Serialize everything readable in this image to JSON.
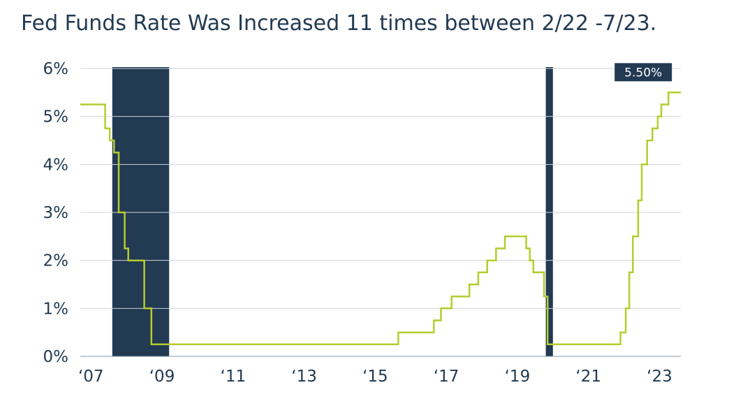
{
  "chart_data": {
    "type": "line",
    "title": "Fed Funds Rate Was Increased 11 times between 2/22 -7/23.",
    "xlabel": "",
    "ylabel": "",
    "xlim": [
      2007.0,
      2023.9
    ],
    "ylim": [
      0,
      6
    ],
    "grid": true,
    "x_tick_labels": [
      {
        "x": 2007.3,
        "label": "‘07"
      },
      {
        "x": 2009.3,
        "label": "‘09"
      },
      {
        "x": 2011.3,
        "label": "‘11"
      },
      {
        "x": 2013.3,
        "label": "‘13"
      },
      {
        "x": 2015.3,
        "label": "‘15"
      },
      {
        "x": 2017.3,
        "label": "‘17"
      },
      {
        "x": 2019.3,
        "label": "‘19"
      },
      {
        "x": 2021.3,
        "label": "‘21"
      },
      {
        "x": 2023.3,
        "label": "‘23"
      }
    ],
    "y_tick_labels": [
      {
        "y": 0,
        "label": "0%"
      },
      {
        "y": 1,
        "label": "1%"
      },
      {
        "y": 2,
        "label": "2%"
      },
      {
        "y": 3,
        "label": "3%"
      },
      {
        "y": 4,
        "label": "4%"
      },
      {
        "y": 5,
        "label": "5%"
      },
      {
        "y": 6,
        "label": "6%"
      }
    ],
    "recessions": [
      {
        "start": 2007.9,
        "end": 2009.5
      },
      {
        "start": 2020.1,
        "end": 2020.3
      }
    ],
    "series": [
      {
        "color": "#b5cc2e",
        "step": true,
        "points": [
          [
            2007.0,
            5.25
          ],
          [
            2007.7,
            4.75
          ],
          [
            2007.83,
            4.5
          ],
          [
            2007.95,
            4.25
          ],
          [
            2008.08,
            3.0
          ],
          [
            2008.25,
            2.25
          ],
          [
            2008.35,
            2.0
          ],
          [
            2008.8,
            1.0
          ],
          [
            2009.0,
            0.25
          ],
          [
            2015.95,
            0.5
          ],
          [
            2016.95,
            0.75
          ],
          [
            2017.15,
            1.0
          ],
          [
            2017.45,
            1.25
          ],
          [
            2017.95,
            1.5
          ],
          [
            2018.2,
            1.75
          ],
          [
            2018.45,
            2.0
          ],
          [
            2018.7,
            2.25
          ],
          [
            2018.95,
            2.5
          ],
          [
            2019.55,
            2.25
          ],
          [
            2019.65,
            2.0
          ],
          [
            2019.75,
            1.75
          ],
          [
            2020.05,
            1.25
          ],
          [
            2020.15,
            0.25
          ],
          [
            2022.2,
            0.5
          ],
          [
            2022.35,
            1.0
          ],
          [
            2022.45,
            1.75
          ],
          [
            2022.55,
            2.5
          ],
          [
            2022.7,
            3.25
          ],
          [
            2022.8,
            4.0
          ],
          [
            2022.95,
            4.5
          ],
          [
            2023.1,
            4.75
          ],
          [
            2023.25,
            5.0
          ],
          [
            2023.35,
            5.25
          ],
          [
            2023.55,
            5.5
          ],
          [
            2023.9,
            5.5
          ]
        ]
      }
    ],
    "annotations": [
      {
        "x": 2023.55,
        "y": 5.5,
        "text": "5.50%"
      }
    ]
  }
}
